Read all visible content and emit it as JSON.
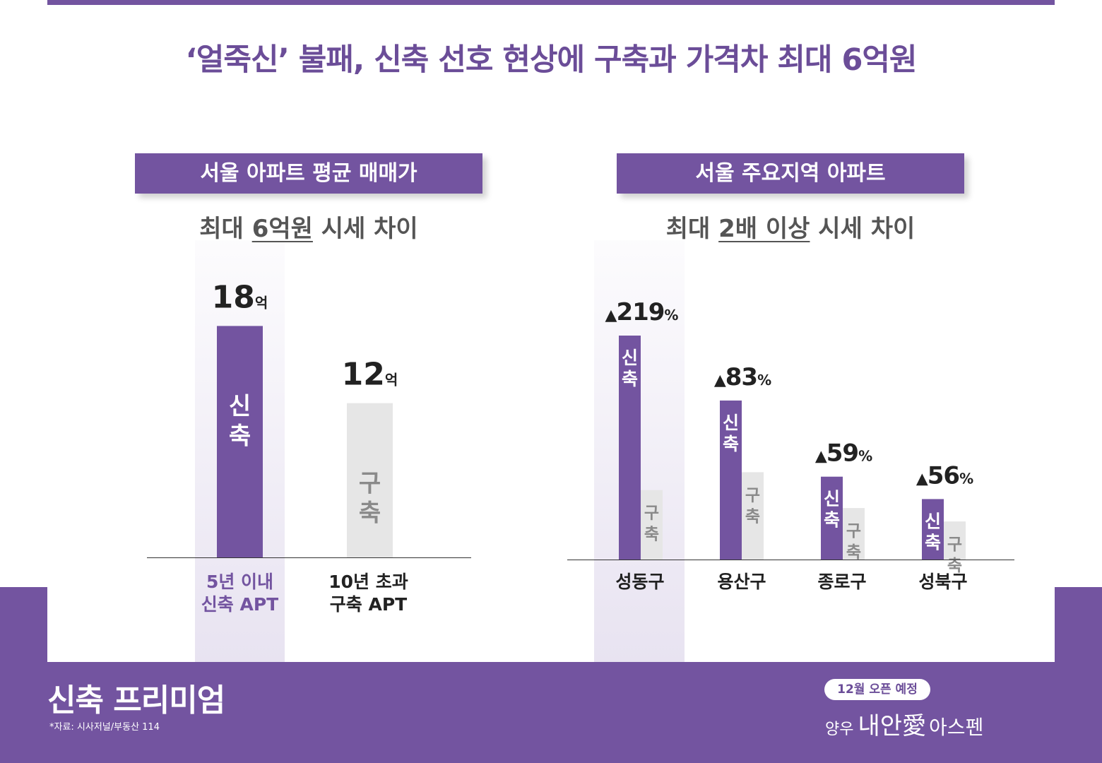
{
  "headline": "‘얼죽신’ 불패, 신축 선호 현상에 구축과 가격차 최대 6억원",
  "colors": {
    "accent": "#7354a0",
    "new_bar": "#7354a0",
    "old_bar": "#e6e6e6",
    "new_text": "#ffffff",
    "old_text": "#8a8a8a",
    "label_purple": "#7354a0"
  },
  "left_panel": {
    "tag": "서울 아파트 평균 매매가",
    "subhead_pre": "최대 ",
    "subhead_emph": "6억원",
    "subhead_post": " 시세 차이",
    "categories": [
      {
        "line1": "5년 이내",
        "line2": "신축 APT",
        "highlighted": true
      },
      {
        "line1": "10년 초과",
        "line2": "구축 APT",
        "highlighted": false
      }
    ]
  },
  "right_panel": {
    "tag": "서울 주요지역 아파트",
    "subhead_pre": "최대 ",
    "subhead_emph": "2배 이상",
    "subhead_post": " 시세 차이",
    "districts": [
      "성동구",
      "용산구",
      "종로구",
      "성북구"
    ]
  },
  "chart_data": [
    {
      "type": "bar",
      "categories": [
        "5년 이내 신축 APT",
        "10년 초과 구축 APT"
      ],
      "values": [
        18,
        12
      ],
      "value_labels": [
        "18",
        "12"
      ],
      "unit": "억",
      "bar_labels": [
        "신축",
        "구축"
      ],
      "ylim": [
        0,
        22
      ]
    },
    {
      "type": "bar",
      "categories": [
        "성동구",
        "용산구",
        "종로구",
        "성북구"
      ],
      "series": [
        {
          "name": "신축",
          "values": [
            100,
            71,
            37,
            27
          ]
        },
        {
          "name": "구축",
          "values": [
            31,
            39,
            23,
            17
          ]
        }
      ],
      "values_note": "relative bar heights, unlabeled on chart",
      "value_labels": [
        "219",
        "83",
        "59",
        "56"
      ],
      "label_prefix": "▲",
      "label_unit": "%",
      "ylim": [
        0,
        100
      ]
    }
  ],
  "footer": {
    "title": "신축 프리미엄",
    "source": "*자료: 시사저널/부동산 114",
    "open_badge": "12월 오픈 예정",
    "brand_a": "양우",
    "brand_b": "내안愛",
    "brand_c": "아스펜"
  }
}
